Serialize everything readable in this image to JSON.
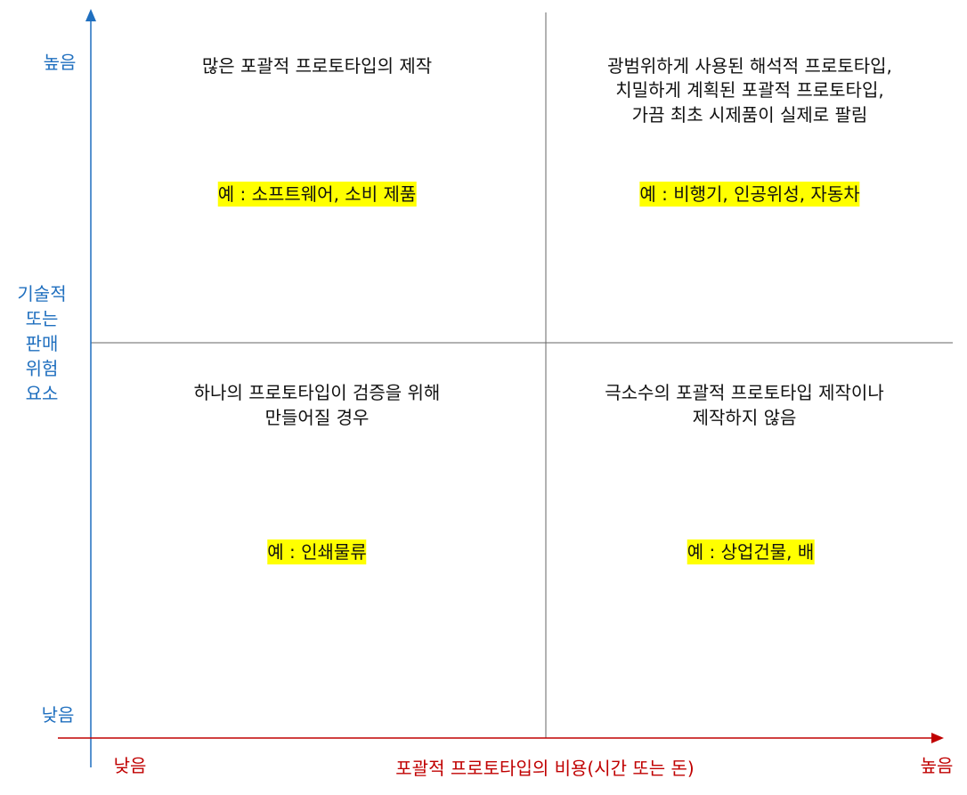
{
  "y_axis": {
    "label": [
      "기술적",
      "또는",
      "판매",
      "위험",
      "요소"
    ],
    "high": "높음",
    "low": "낮음"
  },
  "x_axis": {
    "label": "포괄적 프로토타입의 비용(시간 또는 돈)",
    "low": "낮음",
    "high": "높음"
  },
  "quadrants": [
    {
      "lines": [
        "많은 포괄적 프로토타입의 제작"
      ],
      "example": "예 : 소프트웨어, 소비 제품"
    },
    {
      "lines": [
        "광범위하게 사용된 해석적 프로토타입,",
        "치밀하게 계획된 포괄적 프로토타입,",
        "가끔 최초 시제품이 실제로 팔림"
      ],
      "example": "예 : 비행기, 인공위성, 자동차"
    },
    {
      "lines": [
        "하나의 프로토타입이 검증을 위해",
        "만들어질 경우"
      ],
      "example": "예 : 인쇄물류"
    },
    {
      "lines": [
        "극소수의 포괄적 프로토타입 제작이나",
        "제작하지 않음"
      ],
      "example": "예 : 상업건물, 배"
    }
  ]
}
